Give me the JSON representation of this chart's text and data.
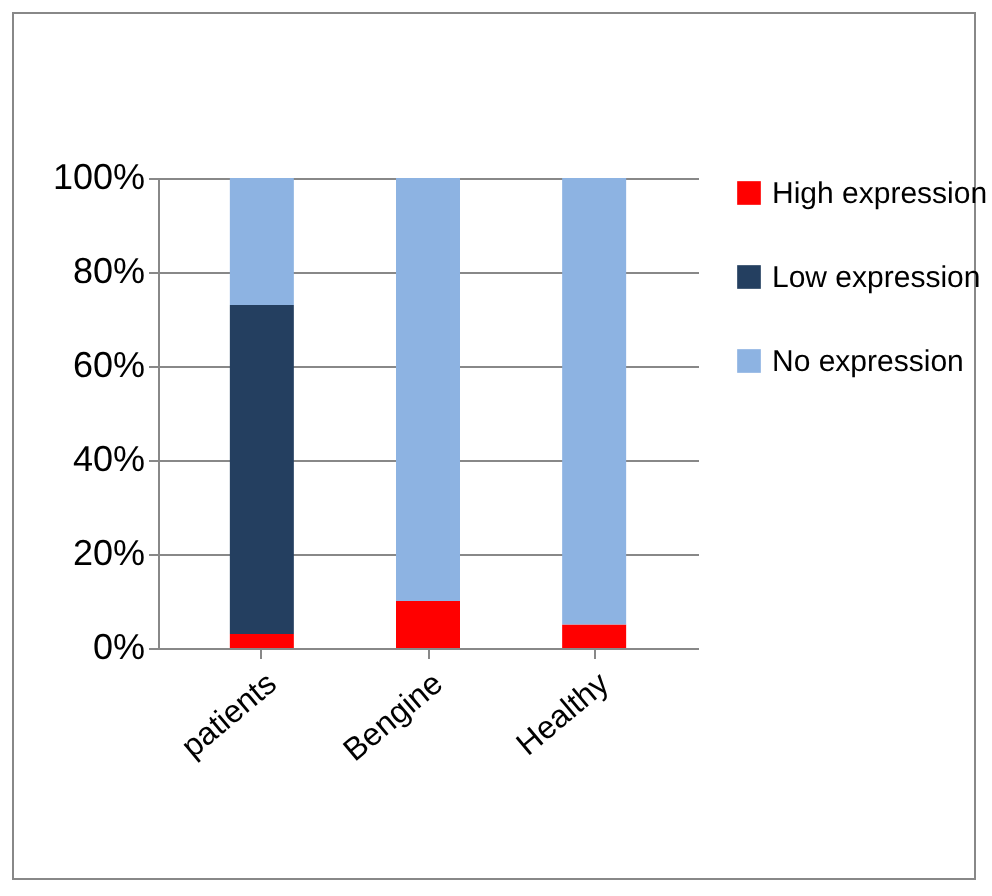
{
  "chart_data": {
    "type": "bar",
    "stacked": true,
    "categories": [
      "patients",
      "Bengine",
      "Healthy"
    ],
    "series": [
      {
        "name": "High expression",
        "color": "#ff0000",
        "values": [
          3,
          10,
          5
        ]
      },
      {
        "name": "Low expression",
        "color": "#243f60",
        "values": [
          70,
          0,
          0
        ]
      },
      {
        "name": "No expression",
        "color": "#8db3e2",
        "values": [
          27,
          90,
          95
        ]
      }
    ],
    "ylim": [
      0,
      100
    ],
    "yticks": [
      {
        "value": 0,
        "label": "0%"
      },
      {
        "value": 20,
        "label": "20%"
      },
      {
        "value": 40,
        "label": "40%"
      },
      {
        "value": 60,
        "label": "60%"
      },
      {
        "value": 80,
        "label": "80%"
      },
      {
        "value": 100,
        "label": "100%"
      }
    ],
    "grid": "y",
    "legend": "right"
  }
}
